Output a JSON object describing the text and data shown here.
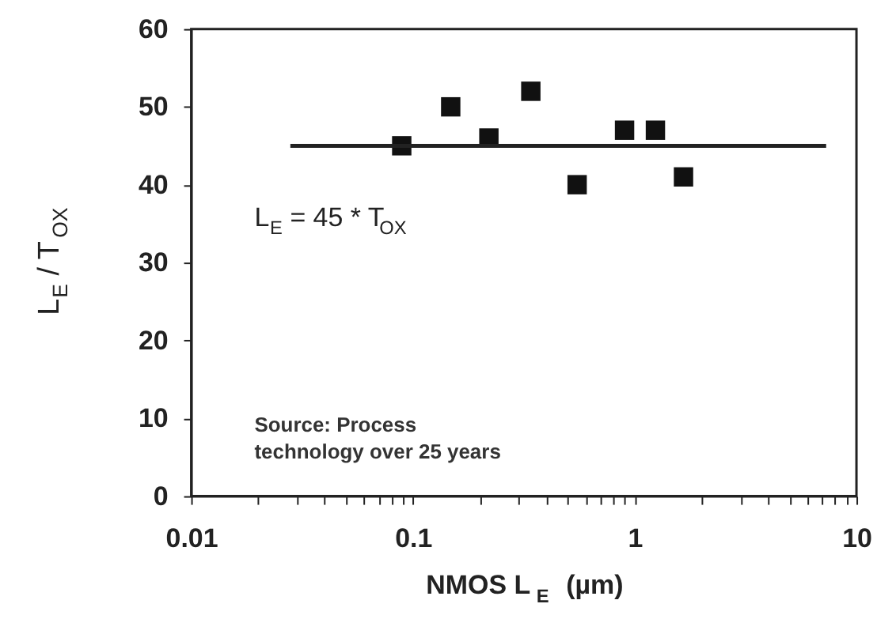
{
  "chart_data": {
    "type": "scatter",
    "xlabel": "NMOS  L$_{E}$  (µm)",
    "ylabel": "L$_{E}$ / T$_{OX}$",
    "x": [
      0.089,
      0.148,
      0.22,
      0.34,
      0.55,
      0.9,
      1.24,
      1.66
    ],
    "series": [
      {
        "color": "#111111",
        "values": [
          45,
          50,
          46,
          52,
          40,
          47,
          47,
          41
        ],
        "marker": "square"
      },
      {
        "type": "line",
        "color": "#222222",
        "x": [
          0.028,
          7.3
        ],
        "values": [
          45,
          45
        ],
        "marker": "none",
        "line_style": "solid"
      }
    ],
    "annotations": [
      "L$_{E}$ = 45 * T$_{OX}$",
      "Source: Process technology over 25 years"
    ],
    "log": "x",
    "grid": false,
    "xlim": [
      0.01,
      10
    ],
    "ylim": [
      0,
      60
    ],
    "xticks": [
      0.01,
      {
        "value": 0.02,
        "label": null
      },
      {
        "value": 0.03,
        "label": null
      },
      {
        "value": 0.04,
        "label": null
      },
      {
        "value": 0.05,
        "label": null
      },
      {
        "value": 0.06,
        "label": null
      },
      {
        "value": 0.07,
        "label": null
      },
      {
        "value": 0.08,
        "label": null
      },
      {
        "value": 0.09,
        "label": null
      },
      0.1,
      {
        "value": 0.2,
        "label": null
      },
      {
        "value": 0.3,
        "label": null
      },
      {
        "value": 0.4,
        "label": null
      },
      {
        "value": 0.5,
        "label": null
      },
      {
        "value": 0.6,
        "label": null
      },
      {
        "value": 0.7,
        "label": null
      },
      {
        "value": 0.8,
        "label": null
      },
      {
        "value": 0.9,
        "label": null
      },
      1,
      {
        "value": 2,
        "label": null
      },
      {
        "value": 3,
        "label": null
      },
      {
        "value": 4,
        "label": null
      },
      {
        "value": 5,
        "label": null
      },
      {
        "value": 6,
        "label": null
      },
      {
        "value": 7,
        "label": null
      },
      {
        "value": 8,
        "label": null
      },
      {
        "value": 9,
        "label": null
      },
      10
    ],
    "yticks": [
      0,
      10,
      20,
      30,
      40,
      50,
      60
    ]
  }
}
